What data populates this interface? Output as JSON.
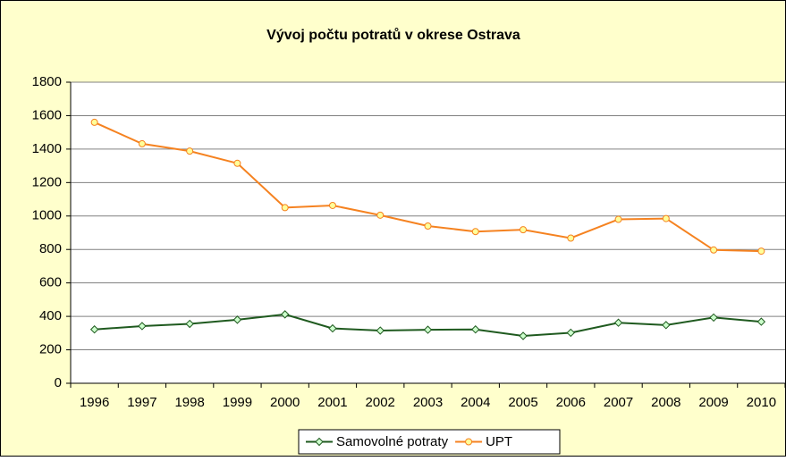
{
  "chart_data": {
    "type": "line",
    "title": "Vývoj počtu potratů v okrese Ostrava",
    "categories": [
      "1996",
      "1997",
      "1998",
      "1999",
      "2000",
      "2001",
      "2002",
      "2003",
      "2004",
      "2005",
      "2006",
      "2007",
      "2008",
      "2009",
      "2010"
    ],
    "series": [
      {
        "name": "Samovolné potraty",
        "color": "#1f5a1f",
        "marker": "diamond",
        "values": [
          322,
          342,
          355,
          380,
          412,
          328,
          315,
          320,
          322,
          283,
          302,
          362,
          348,
          393,
          368
        ]
      },
      {
        "name": "UPT",
        "color": "#f58220",
        "marker": "circle",
        "values": [
          1560,
          1432,
          1388,
          1315,
          1050,
          1063,
          1005,
          940,
          907,
          918,
          868,
          980,
          985,
          797,
          790
        ]
      }
    ],
    "ylim": [
      0,
      1800
    ],
    "yticks": [
      0,
      200,
      400,
      600,
      800,
      1000,
      1200,
      1400,
      1600,
      1800
    ],
    "grid": true,
    "legend": "bottom"
  }
}
